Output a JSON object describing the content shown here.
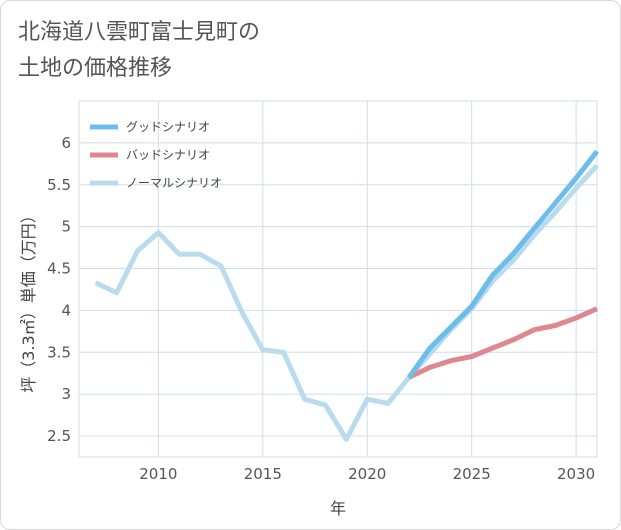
{
  "title_line1": "北海道八雲町富士見町の",
  "title_line2": "土地の価格推移",
  "chart_data": {
    "type": "line",
    "xlabel": "年",
    "ylabel": "坪（3.3㎡）単価（万円）",
    "xlim": [
      2006.2,
      2031
    ],
    "ylim": [
      2.25,
      6.5
    ],
    "x_ticks": [
      2010,
      2015,
      2020,
      2025,
      2030
    ],
    "y_ticks": [
      2.5,
      3,
      3.5,
      4,
      4.5,
      5,
      5.5,
      6
    ],
    "y_tick_labels": [
      "2.5",
      "3",
      "3.5",
      "4",
      "4.5",
      "5",
      "5.5",
      "6"
    ],
    "grid": true,
    "legend_position": "top-left",
    "series": [
      {
        "name": "グッドシナリオ",
        "color": "#6dbcec",
        "points": [
          [
            2022,
            3.2
          ],
          [
            2023,
            3.55
          ],
          [
            2024,
            3.8
          ],
          [
            2025,
            4.05
          ],
          [
            2026,
            4.42
          ],
          [
            2027,
            4.68
          ],
          [
            2028,
            4.98
          ],
          [
            2029,
            5.28
          ],
          [
            2030,
            5.58
          ],
          [
            2031,
            5.9
          ]
        ]
      },
      {
        "name": "バッドシナリオ",
        "color": "#e0868f",
        "points": [
          [
            2022,
            3.2
          ],
          [
            2023,
            3.32
          ],
          [
            2024,
            3.4
          ],
          [
            2025,
            3.45
          ],
          [
            2026,
            3.55
          ],
          [
            2027,
            3.65
          ],
          [
            2028,
            3.77
          ],
          [
            2029,
            3.82
          ],
          [
            2030,
            3.91
          ],
          [
            2031,
            4.02
          ]
        ]
      },
      {
        "name": "ノーマルシナリオ",
        "color": "#b8dced",
        "points": [
          [
            2007,
            4.33
          ],
          [
            2008,
            4.21
          ],
          [
            2009,
            4.71
          ],
          [
            2010,
            4.93
          ],
          [
            2011,
            4.67
          ],
          [
            2012,
            4.67
          ],
          [
            2013,
            4.53
          ],
          [
            2014,
            3.98
          ],
          [
            2015,
            3.53
          ],
          [
            2016,
            3.5
          ],
          [
            2017,
            2.94
          ],
          [
            2018,
            2.87
          ],
          [
            2019,
            2.46
          ],
          [
            2020,
            2.94
          ],
          [
            2021,
            2.89
          ],
          [
            2022,
            3.2
          ],
          [
            2023,
            3.48
          ],
          [
            2024,
            3.77
          ],
          [
            2025,
            4.02
          ],
          [
            2026,
            4.35
          ],
          [
            2027,
            4.6
          ],
          [
            2028,
            4.9
          ],
          [
            2029,
            5.17
          ],
          [
            2030,
            5.46
          ],
          [
            2031,
            5.73
          ]
        ]
      }
    ]
  }
}
